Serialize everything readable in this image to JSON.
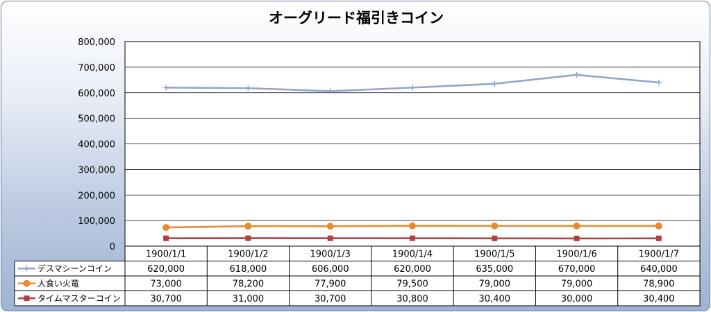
{
  "chart_data": {
    "type": "line",
    "title": "オーグリード福引きコイン",
    "categories": [
      "1900/1/1",
      "1900/1/2",
      "1900/1/3",
      "1900/1/4",
      "1900/1/5",
      "1900/1/6",
      "1900/1/7"
    ],
    "ylim": [
      0,
      800000
    ],
    "ytick_labels": [
      "800,000",
      "700,000",
      "600,000",
      "500,000",
      "400,000",
      "300,000",
      "200,000",
      "100,000",
      "0"
    ],
    "grid": true,
    "legend": "data-table",
    "series": [
      {
        "name": "デスマシーンコイン",
        "values": [
          620000,
          618000,
          606000,
          620000,
          635000,
          670000,
          640000
        ],
        "labels": [
          "620,000",
          "618,000",
          "606,000",
          "620,000",
          "635,000",
          "670,000",
          "640,000"
        ],
        "color": "#8ea5cf",
        "marker": "plus"
      },
      {
        "name": "人食い火竜",
        "values": [
          73000,
          78200,
          77900,
          79500,
          79000,
          79000,
          78900
        ],
        "labels": [
          "73,000",
          "78,200",
          "77,900",
          "79,500",
          "79,000",
          "79,000",
          "78,900"
        ],
        "color": "#ea8a30",
        "marker": "circle"
      },
      {
        "name": "タイムマスターコイン",
        "values": [
          30700,
          31000,
          30700,
          30800,
          30400,
          30000,
          30400
        ],
        "labels": [
          "30,700",
          "31,000",
          "30,700",
          "30,800",
          "30,400",
          "30,000",
          "30,400"
        ],
        "color": "#b54040",
        "marker": "square"
      }
    ]
  }
}
